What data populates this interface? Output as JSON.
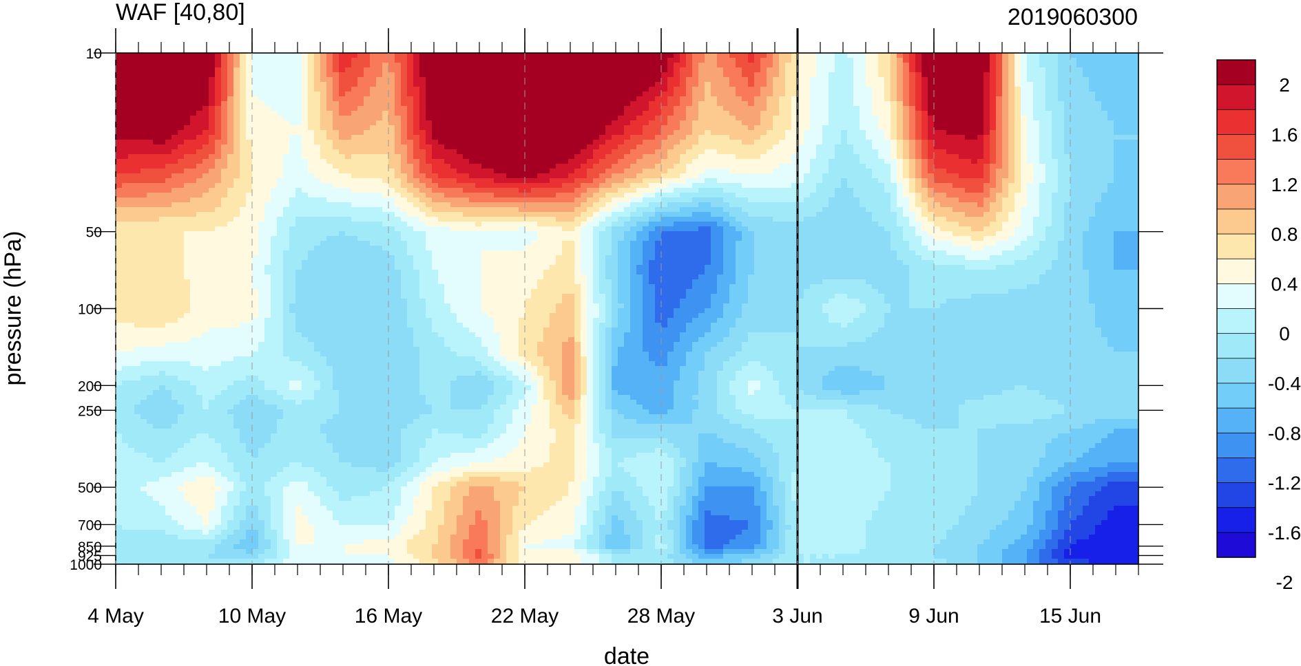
{
  "chart_data": {
    "type": "heatmap",
    "title_left": "WAF [40,80]",
    "title_right": "2019060300",
    "xlabel": "date",
    "ylabel": "pressure (hPa)",
    "x_ticks": [
      "4 May",
      "10 May",
      "16 May",
      "22 May",
      "28 May",
      "3 Jun",
      "9 Jun",
      "15 Jun"
    ],
    "x_dates": [
      "2019-05-04",
      "2019-05-10",
      "2019-05-16",
      "2019-05-22",
      "2019-05-28",
      "2019-06-03",
      "2019-06-09",
      "2019-06-15"
    ],
    "xlim": [
      "2019-05-04",
      "2019-06-18"
    ],
    "marked_date": "2019-06-03",
    "y_scale": "log",
    "y_ticks": [
      10,
      50,
      100,
      200,
      250,
      500,
      700,
      850,
      925,
      1000
    ],
    "y_tick_labels": [
      "10",
      "50",
      "100",
      "200",
      "250",
      "500",
      "700",
      "850",
      "925",
      "1000"
    ],
    "ylim": [
      1000,
      10
    ],
    "colorbar_labels": [
      "2",
      "1.6",
      "1.2",
      "0.8",
      "0.4",
      "0",
      "-0.4",
      "-0.8",
      "-1.2",
      "-1.6",
      "-2"
    ],
    "colorbar_colors": [
      "#a50021",
      "#d0152d",
      "#ea3030",
      "#f0503e",
      "#f87a5a",
      "#f9a474",
      "#fcc98e",
      "#fde7ad",
      "#fffadf",
      "#e3fdff",
      "#b9f3fb",
      "#a0e9f9",
      "#8cdcf8",
      "#72cef9",
      "#56b2f7",
      "#3e92f2",
      "#2f6cec",
      "#2246e6",
      "#1620e9",
      "#1f0bd8"
    ],
    "levels": [
      -2,
      -1.8,
      -1.6,
      -1.4,
      -1.2,
      -1,
      -0.8,
      -0.6,
      -0.4,
      -0.2,
      0,
      0.2,
      0.4,
      0.6,
      0.8,
      1,
      1.2,
      1.4,
      1.6,
      1.8,
      2
    ],
    "x": [
      "2019-05-04",
      "2019-05-06",
      "2019-05-08",
      "2019-05-10",
      "2019-05-12",
      "2019-05-14",
      "2019-05-16",
      "2019-05-18",
      "2019-05-20",
      "2019-05-22",
      "2019-05-24",
      "2019-05-26",
      "2019-05-28",
      "2019-05-30",
      "2019-06-01",
      "2019-06-03",
      "2019-06-05",
      "2019-06-07",
      "2019-06-09",
      "2019-06-11",
      "2019-06-13",
      "2019-06-15",
      "2019-06-17"
    ],
    "y": [
      10,
      20,
      30,
      50,
      70,
      100,
      150,
      200,
      250,
      300,
      400,
      500,
      700,
      850,
      925,
      1000
    ],
    "z": [
      [
        2.4,
        2.3,
        2.2,
        0.1,
        0.0,
        1.6,
        1.0,
        2.2,
        2.4,
        2.6,
        2.5,
        2.4,
        2.1,
        0.9,
        1.5,
        0.4,
        -0.1,
        0.6,
        2.3,
        2.2,
        0.0,
        -0.6,
        -0.7
      ],
      [
        1.9,
        2.0,
        1.6,
        0.3,
        0.2,
        0.9,
        0.7,
        1.9,
        2.2,
        2.3,
        2.2,
        1.7,
        1.2,
        0.6,
        0.8,
        0.3,
        -0.2,
        0.3,
        1.8,
        1.9,
        0.2,
        -0.5,
        -0.6
      ],
      [
        1.4,
        1.3,
        1.0,
        0.4,
        0.1,
        0.4,
        0.5,
        1.4,
        1.7,
        1.9,
        1.6,
        1.0,
        0.6,
        0.1,
        0.2,
        0.1,
        -0.4,
        -0.1,
        1.3,
        1.5,
        0.3,
        -0.4,
        -0.6
      ],
      [
        0.4,
        0.4,
        0.4,
        0.3,
        -0.3,
        -0.4,
        -0.3,
        0.1,
        0.2,
        0.1,
        0.4,
        -0.5,
        -1.2,
        -1.3,
        -0.6,
        -0.5,
        -0.6,
        -0.4,
        0.3,
        0.6,
        0.1,
        -0.5,
        -0.8
      ],
      [
        0.4,
        0.5,
        0.3,
        0.2,
        -0.4,
        -0.6,
        -0.5,
        0.0,
        0.2,
        0.3,
        0.5,
        -0.6,
        -1.4,
        -1.2,
        -0.6,
        -0.5,
        -0.5,
        -0.5,
        -0.3,
        -0.2,
        -0.3,
        -0.5,
        -0.8
      ],
      [
        0.5,
        0.6,
        0.3,
        0.3,
        -0.5,
        -0.6,
        -0.6,
        -0.1,
        0.2,
        0.4,
        0.7,
        -0.5,
        -1.3,
        -1.0,
        -0.5,
        -0.4,
        0.0,
        -0.4,
        -0.4,
        -0.5,
        -0.5,
        -0.5,
        -0.7
      ],
      [
        0.2,
        0.1,
        0.1,
        0.0,
        -0.3,
        -0.5,
        -0.6,
        -0.3,
        -0.1,
        0.5,
        0.9,
        -0.8,
        -1.1,
        -0.6,
        -0.3,
        -0.4,
        -0.5,
        -0.5,
        -0.5,
        -0.5,
        -0.5,
        -0.5,
        -0.6
      ],
      [
        -0.2,
        -0.4,
        -0.1,
        -0.3,
        0.1,
        -0.5,
        -0.6,
        -0.3,
        -0.6,
        -0.1,
        1.0,
        -0.9,
        -0.9,
        -0.5,
        0.1,
        -0.4,
        -0.8,
        -0.6,
        -0.5,
        -0.5,
        -0.4,
        -0.6,
        -0.5
      ],
      [
        -0.3,
        -0.6,
        -0.2,
        -0.6,
        -0.3,
        -0.4,
        -0.6,
        -0.4,
        -0.4,
        0.1,
        0.7,
        -0.6,
        -0.9,
        -0.5,
        -0.1,
        -0.2,
        -0.2,
        -0.4,
        -0.5,
        -0.3,
        -0.2,
        -0.4,
        -0.5
      ],
      [
        -0.2,
        -0.4,
        -0.2,
        -0.5,
        -0.3,
        -0.5,
        -0.5,
        -0.2,
        -0.3,
        0.2,
        0.5,
        -0.5,
        -0.5,
        -0.6,
        -0.4,
        -0.2,
        -0.1,
        -0.3,
        -0.4,
        -0.4,
        -0.5,
        -0.6,
        -0.8
      ],
      [
        -0.1,
        -0.2,
        0.0,
        -0.4,
        -0.2,
        -0.4,
        -0.5,
        0.0,
        0.2,
        0.3,
        0.5,
        -0.2,
        0.0,
        -0.8,
        -0.7,
        -0.2,
        -0.1,
        -0.2,
        -0.3,
        -0.4,
        -0.5,
        -0.8,
        -1.0
      ],
      [
        -0.1,
        0.1,
        0.4,
        -0.3,
        0.1,
        -0.3,
        -0.2,
        0.4,
        0.9,
        0.6,
        0.4,
        -0.4,
        0.0,
        -1.0,
        -1.0,
        -0.1,
        0.0,
        -0.2,
        -0.2,
        -0.4,
        -0.6,
        -1.2,
        -1.5
      ],
      [
        -0.2,
        -0.1,
        0.2,
        -0.6,
        0.3,
        0.0,
        0.0,
        0.5,
        1.1,
        0.4,
        0.3,
        -0.7,
        -0.2,
        -1.3,
        -1.2,
        -0.2,
        -0.1,
        -0.3,
        -0.3,
        -0.5,
        -0.7,
        -1.4,
        -1.7
      ],
      [
        -0.3,
        -0.4,
        -0.3,
        -0.8,
        0.2,
        0.2,
        0.3,
        0.6,
        1.2,
        0.2,
        0.1,
        -0.8,
        -0.1,
        -1.3,
        -1.1,
        -0.2,
        -0.1,
        -0.3,
        -0.4,
        -0.6,
        -0.9,
        -1.6,
        -1.8
      ],
      [
        -0.3,
        -0.3,
        -0.4,
        -0.5,
        0.1,
        0.2,
        0.2,
        0.6,
        1.3,
        0.2,
        0.4,
        -0.3,
        -0.3,
        -0.9,
        -0.7,
        -0.2,
        -0.2,
        -0.3,
        -0.4,
        -0.6,
        -1.0,
        -1.7,
        -1.7
      ],
      [
        -0.2,
        -0.2,
        -0.3,
        -0.3,
        0.2,
        0.1,
        0.1,
        0.5,
        1.0,
        0.3,
        0.3,
        -0.2,
        -0.3,
        -0.6,
        -0.5,
        -0.2,
        -0.2,
        -0.3,
        -0.3,
        -0.6,
        -1.0,
        -1.5,
        -1.6
      ]
    ]
  }
}
